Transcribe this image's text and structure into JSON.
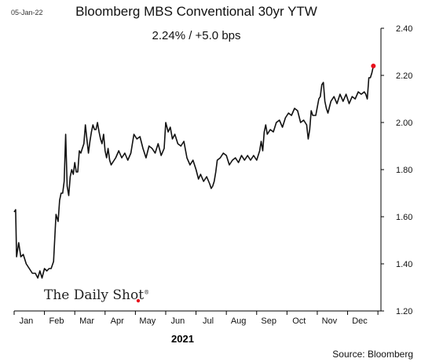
{
  "header": {
    "date_stamp": "05-Jan-22",
    "title": "Bloomberg MBS Conventional 30yr YTW",
    "subtitle": "2.24%  /  +5.0 bps"
  },
  "footer": {
    "xlabel": "2021",
    "source": "Source: Bloomberg",
    "watermark": "The Daily Shot",
    "watermark_mark": "®"
  },
  "colors": {
    "line": "#111111",
    "last_point": "#e8101c",
    "axis": "#000000"
  },
  "chart_data": {
    "type": "line",
    "title": "Bloomberg MBS Conventional 30yr YTW",
    "subtitle": "2.24%  /  +5.0 bps",
    "xlabel": "2021",
    "ylabel": "",
    "x_unit": "months of 2021 (Jan = 0)",
    "xlim": [
      0,
      12.1
    ],
    "ylim": [
      1.2,
      2.4
    ],
    "y_axis_position": "right",
    "grid": false,
    "x_ticks": [
      "Jan",
      "Feb",
      "Mar",
      "Apr",
      "May",
      "Jun",
      "Jul",
      "Aug",
      "Sep",
      "Oct",
      "Nov",
      "Dec"
    ],
    "y_ticks": [
      "1.20",
      "1.40",
      "1.60",
      "1.80",
      "2.00",
      "2.20",
      "2.40"
    ],
    "last_value": 2.24,
    "series": [
      {
        "name": "",
        "points": [
          [
            0.0,
            1.62
          ],
          [
            0.05,
            1.63
          ],
          [
            0.08,
            1.43
          ],
          [
            0.15,
            1.49
          ],
          [
            0.22,
            1.43
          ],
          [
            0.3,
            1.44
          ],
          [
            0.4,
            1.4
          ],
          [
            0.5,
            1.38
          ],
          [
            0.6,
            1.36
          ],
          [
            0.7,
            1.36
          ],
          [
            0.78,
            1.34
          ],
          [
            0.85,
            1.37
          ],
          [
            0.92,
            1.34
          ],
          [
            1.0,
            1.38
          ],
          [
            1.08,
            1.37
          ],
          [
            1.15,
            1.38
          ],
          [
            1.22,
            1.38
          ],
          [
            1.3,
            1.41
          ],
          [
            1.38,
            1.61
          ],
          [
            1.45,
            1.58
          ],
          [
            1.5,
            1.67
          ],
          [
            1.55,
            1.7
          ],
          [
            1.6,
            1.7
          ],
          [
            1.65,
            1.75
          ],
          [
            1.7,
            1.95
          ],
          [
            1.75,
            1.73
          ],
          [
            1.8,
            1.69
          ],
          [
            1.85,
            1.77
          ],
          [
            1.9,
            1.8
          ],
          [
            1.95,
            1.78
          ],
          [
            2.0,
            1.83
          ],
          [
            2.05,
            1.79
          ],
          [
            2.1,
            1.79
          ],
          [
            2.15,
            1.88
          ],
          [
            2.2,
            1.87
          ],
          [
            2.25,
            1.89
          ],
          [
            2.3,
            1.91
          ],
          [
            2.35,
            1.99
          ],
          [
            2.4,
            1.93
          ],
          [
            2.45,
            1.87
          ],
          [
            2.5,
            1.92
          ],
          [
            2.55,
            1.96
          ],
          [
            2.6,
            1.99
          ],
          [
            2.65,
            1.97
          ],
          [
            2.7,
            1.97
          ],
          [
            2.75,
            2.0
          ],
          [
            2.8,
            1.96
          ],
          [
            2.85,
            1.93
          ],
          [
            2.9,
            1.91
          ],
          [
            2.95,
            1.95
          ],
          [
            3.0,
            1.88
          ],
          [
            3.05,
            1.85
          ],
          [
            3.1,
            1.89
          ],
          [
            3.15,
            1.84
          ],
          [
            3.2,
            1.82
          ],
          [
            3.25,
            1.83
          ],
          [
            3.35,
            1.85
          ],
          [
            3.45,
            1.88
          ],
          [
            3.55,
            1.85
          ],
          [
            3.65,
            1.87
          ],
          [
            3.75,
            1.84
          ],
          [
            3.85,
            1.87
          ],
          [
            3.95,
            1.95
          ],
          [
            4.05,
            1.93
          ],
          [
            4.15,
            1.94
          ],
          [
            4.25,
            1.89
          ],
          [
            4.35,
            1.85
          ],
          [
            4.45,
            1.9
          ],
          [
            4.55,
            1.89
          ],
          [
            4.65,
            1.87
          ],
          [
            4.75,
            1.91
          ],
          [
            4.85,
            1.86
          ],
          [
            4.95,
            1.89
          ],
          [
            5.0,
            2.0
          ],
          [
            5.08,
            1.96
          ],
          [
            5.15,
            1.98
          ],
          [
            5.22,
            1.93
          ],
          [
            5.3,
            1.95
          ],
          [
            5.4,
            1.91
          ],
          [
            5.5,
            1.9
          ],
          [
            5.6,
            1.92
          ],
          [
            5.7,
            1.85
          ],
          [
            5.8,
            1.82
          ],
          [
            5.9,
            1.84
          ],
          [
            6.0,
            1.8
          ],
          [
            6.08,
            1.76
          ],
          [
            6.15,
            1.78
          ],
          [
            6.25,
            1.75
          ],
          [
            6.35,
            1.77
          ],
          [
            6.45,
            1.74
          ],
          [
            6.5,
            1.72
          ],
          [
            6.55,
            1.73
          ],
          [
            6.6,
            1.75
          ],
          [
            6.65,
            1.79
          ],
          [
            6.7,
            1.84
          ],
          [
            6.8,
            1.85
          ],
          [
            6.9,
            1.87
          ],
          [
            7.0,
            1.86
          ],
          [
            7.1,
            1.82
          ],
          [
            7.2,
            1.84
          ],
          [
            7.3,
            1.85
          ],
          [
            7.4,
            1.83
          ],
          [
            7.5,
            1.86
          ],
          [
            7.6,
            1.84
          ],
          [
            7.7,
            1.86
          ],
          [
            7.8,
            1.84
          ],
          [
            7.9,
            1.86
          ],
          [
            8.0,
            1.84
          ],
          [
            8.05,
            1.86
          ],
          [
            8.1,
            1.88
          ],
          [
            8.15,
            1.92
          ],
          [
            8.2,
            1.88
          ],
          [
            8.25,
            1.96
          ],
          [
            8.3,
            1.99
          ],
          [
            8.35,
            1.95
          ],
          [
            8.45,
            1.97
          ],
          [
            8.55,
            1.96
          ],
          [
            8.65,
            2.0
          ],
          [
            8.75,
            2.01
          ],
          [
            8.85,
            1.98
          ],
          [
            8.95,
            2.02
          ],
          [
            9.05,
            2.04
          ],
          [
            9.15,
            2.03
          ],
          [
            9.25,
            2.06
          ],
          [
            9.35,
            2.05
          ],
          [
            9.45,
            2.0
          ],
          [
            9.55,
            2.01
          ],
          [
            9.65,
            1.99
          ],
          [
            9.7,
            1.93
          ],
          [
            9.75,
            1.97
          ],
          [
            9.8,
            2.05
          ],
          [
            9.85,
            2.03
          ],
          [
            9.95,
            2.03
          ],
          [
            10.05,
            2.1
          ],
          [
            10.1,
            2.11
          ],
          [
            10.15,
            2.16
          ],
          [
            10.2,
            2.17
          ],
          [
            10.25,
            2.09
          ],
          [
            10.3,
            2.06
          ],
          [
            10.35,
            2.04
          ],
          [
            10.45,
            2.09
          ],
          [
            10.55,
            2.11
          ],
          [
            10.65,
            2.08
          ],
          [
            10.75,
            2.12
          ],
          [
            10.85,
            2.09
          ],
          [
            10.95,
            2.12
          ],
          [
            11.05,
            2.08
          ],
          [
            11.15,
            2.11
          ],
          [
            11.25,
            2.1
          ],
          [
            11.35,
            2.13
          ],
          [
            11.45,
            2.12
          ],
          [
            11.55,
            2.13
          ],
          [
            11.6,
            2.12
          ],
          [
            11.65,
            2.1
          ],
          [
            11.7,
            2.19
          ],
          [
            11.75,
            2.19
          ],
          [
            11.8,
            2.21
          ],
          [
            11.85,
            2.24
          ]
        ]
      }
    ]
  }
}
